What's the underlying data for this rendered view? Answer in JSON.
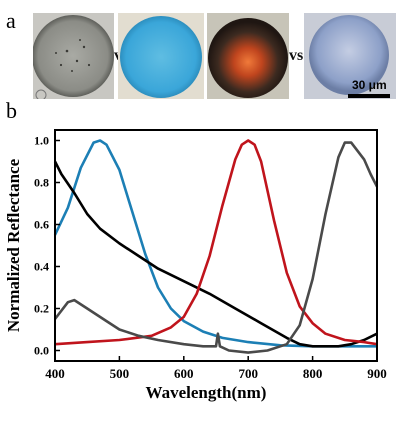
{
  "figure": {
    "panel_a_label": "a",
    "panel_b_label": "b",
    "vs_label_1": "vs",
    "vs_label_2": "vs",
    "scale_bar_label": "30 μm"
  },
  "micrographs": [
    {
      "name": "gray-sphere",
      "bg": "#c8c7c2",
      "fill": "#8b8c86",
      "rim": "#5f605b",
      "center": "#a9aaa4"
    },
    {
      "name": "blue-sphere",
      "bg": "#e2ddd0",
      "fill": "#3aa6d9",
      "rim": "#2d8fbf",
      "center": "#5fbde2"
    },
    {
      "name": "red-sphere",
      "bg": "#c7c4b8",
      "fill": "#3c2a20",
      "rim": "#1f1612",
      "center": "#e0672c"
    },
    {
      "name": "lavender-sphere",
      "bg": "#c8ccd6",
      "fill": "#8da0c8",
      "rim": "#6c7ea5",
      "center": "#b8c4de"
    }
  ],
  "chart_data": {
    "type": "line",
    "xlabel": "Wavelength(nm)",
    "ylabel": "Normalized Reflectance",
    "xlim": [
      400,
      900
    ],
    "ylim": [
      -0.05,
      1.05
    ],
    "xticks": [
      400,
      500,
      600,
      700,
      800,
      900
    ],
    "yticks": [
      0.0,
      0.2,
      0.4,
      0.6,
      0.8,
      1.0
    ],
    "xtick_labels": [
      "400",
      "500",
      "600",
      "700",
      "800",
      "900"
    ],
    "ytick_labels": [
      "0.0",
      "0.2",
      "0.4",
      "0.6",
      "0.8",
      "1.0"
    ],
    "grid": false,
    "legend": "none",
    "series": [
      {
        "color": "#1c7fb5",
        "x": [
          400,
          420,
          440,
          460,
          470,
          480,
          500,
          520,
          540,
          560,
          580,
          600,
          630,
          660,
          700,
          750,
          800,
          850,
          900
        ],
        "y": [
          0.55,
          0.68,
          0.87,
          0.99,
          1.0,
          0.98,
          0.86,
          0.66,
          0.46,
          0.3,
          0.2,
          0.14,
          0.09,
          0.06,
          0.04,
          0.025,
          0.02,
          0.02,
          0.02
        ]
      },
      {
        "color": "#000000",
        "x": [
          400,
          410,
          430,
          450,
          470,
          500,
          530,
          560,
          600,
          640,
          680,
          720,
          760,
          780,
          800,
          820,
          840,
          860,
          880,
          900
        ],
        "y": [
          0.9,
          0.84,
          0.75,
          0.65,
          0.58,
          0.51,
          0.45,
          0.39,
          0.33,
          0.27,
          0.2,
          0.13,
          0.06,
          0.03,
          0.02,
          0.02,
          0.02,
          0.03,
          0.05,
          0.08
        ]
      },
      {
        "color": "#c0141c",
        "x": [
          400,
          450,
          500,
          550,
          580,
          600,
          620,
          640,
          660,
          680,
          690,
          700,
          710,
          720,
          740,
          760,
          780,
          800,
          820,
          850,
          880,
          900
        ],
        "y": [
          0.03,
          0.04,
          0.05,
          0.07,
          0.11,
          0.16,
          0.27,
          0.45,
          0.69,
          0.91,
          0.98,
          1.0,
          0.98,
          0.9,
          0.62,
          0.37,
          0.21,
          0.13,
          0.08,
          0.05,
          0.04,
          0.03
        ]
      },
      {
        "color": "#4a4a4a",
        "x": [
          400,
          420,
          430,
          450,
          480,
          500,
          530,
          560,
          600,
          630,
          650,
          653,
          656,
          670,
          700,
          730,
          760,
          780,
          800,
          820,
          840,
          850,
          860,
          880,
          890,
          900
        ],
        "y": [
          0.15,
          0.23,
          0.24,
          0.2,
          0.14,
          0.1,
          0.07,
          0.05,
          0.03,
          0.02,
          0.02,
          0.08,
          0.02,
          0.0,
          -0.01,
          0.0,
          0.03,
          0.12,
          0.34,
          0.65,
          0.92,
          0.99,
          0.99,
          0.91,
          0.84,
          0.78
        ]
      }
    ]
  }
}
